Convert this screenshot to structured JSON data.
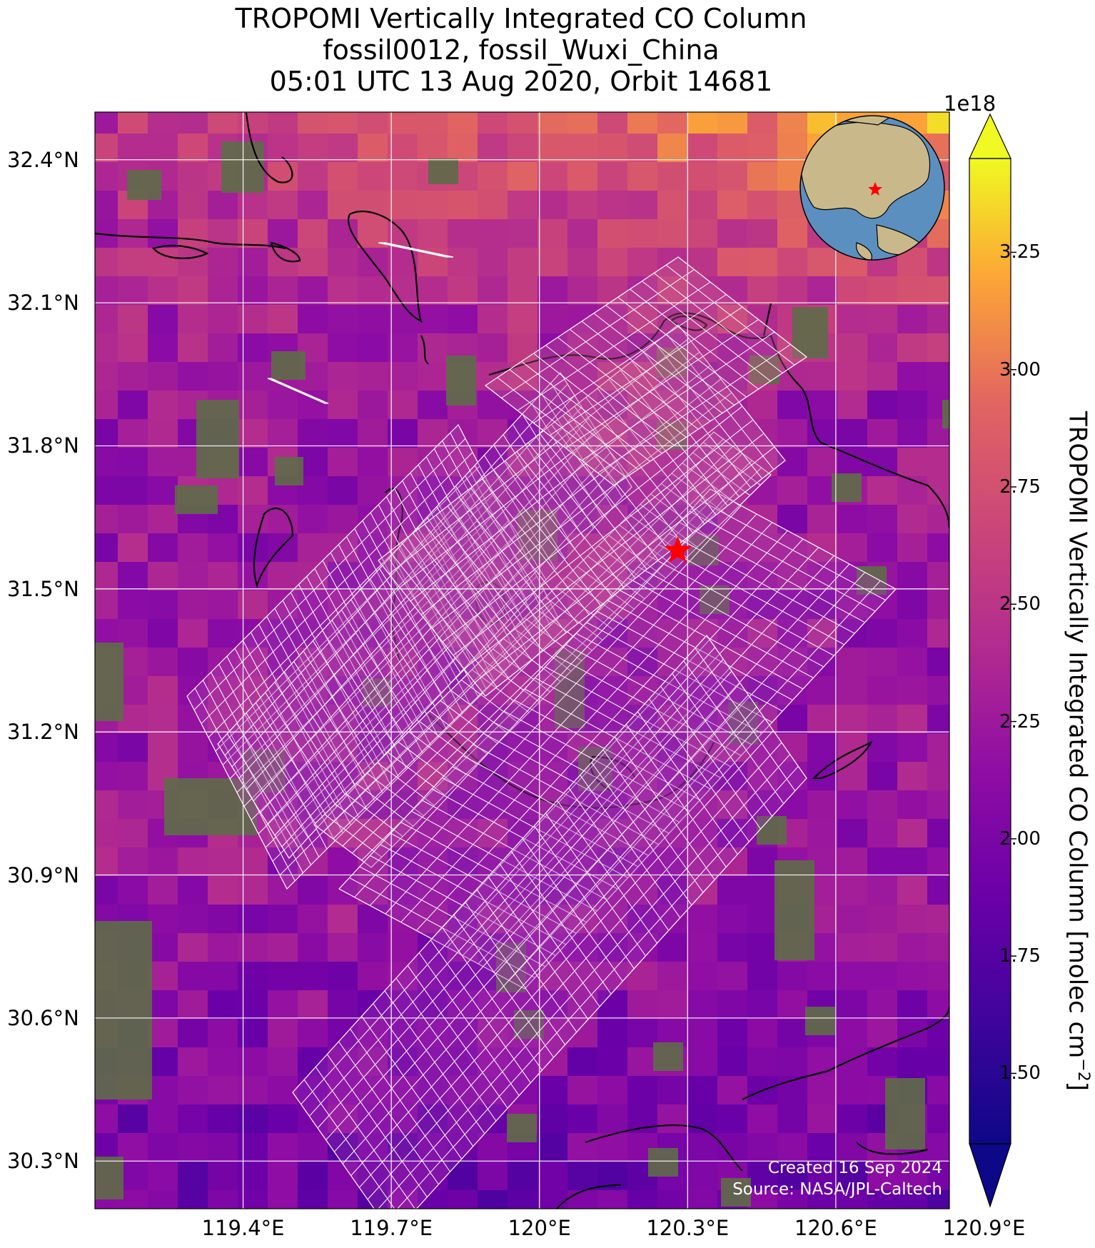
{
  "title": {
    "line1": "TROPOMI Vertically Integrated CO Column",
    "line2": "fossil0012, fossil_Wuxi_China",
    "line3": "05:01 UTC 13 Aug 2020, Orbit 14681"
  },
  "map": {
    "lat_range": [
      30.2,
      32.5
    ],
    "lon_range": [
      119.1,
      120.83
    ],
    "lat_ticks": [
      {
        "value": 32.4,
        "label": "32.4°N"
      },
      {
        "value": 32.1,
        "label": "32.1°N"
      },
      {
        "value": 31.8,
        "label": "31.8°N"
      },
      {
        "value": 31.5,
        "label": "31.5°N"
      },
      {
        "value": 31.2,
        "label": "31.2°N"
      },
      {
        "value": 30.9,
        "label": "30.9°N"
      },
      {
        "value": 30.6,
        "label": "30.6°N"
      },
      {
        "value": 30.3,
        "label": "30.3°N"
      }
    ],
    "lon_ticks": [
      {
        "value": 119.4,
        "label": "119.4°E"
      },
      {
        "value": 119.7,
        "label": "119.7°E"
      },
      {
        "value": 120.0,
        "label": "120°E"
      },
      {
        "value": 120.3,
        "label": "120.3°E"
      },
      {
        "value": 120.6,
        "label": "120.6°E"
      },
      {
        "value": 120.9,
        "label": "120.9°E"
      }
    ],
    "target_site": {
      "name": "fossil_Wuxi_China",
      "lat": 31.58,
      "lon": 120.28,
      "marker": "red-star"
    },
    "basemap": "satellite-imagery",
    "colormap": "plasma",
    "overlay": "white sounding footprint grids"
  },
  "colorbar": {
    "label": "TROPOMI Vertically Integrated CO Column [molec cm",
    "label_exponent": "−2",
    "label_close": "]",
    "multiplier": "1e18",
    "min": 1.35,
    "max": 3.45,
    "ticks": [
      "1.50",
      "1.75",
      "2.00",
      "2.25",
      "2.50",
      "2.75",
      "3.00",
      "3.25"
    ],
    "extend": "both"
  },
  "credits": {
    "created": "Created 16 Sep 2024",
    "source": "Source: NASA/JPL-Caltech"
  },
  "colors": {
    "gridline": "#ffffff",
    "coastline": "#000000",
    "footprint": "#ffffff",
    "star": "#ff0000"
  }
}
